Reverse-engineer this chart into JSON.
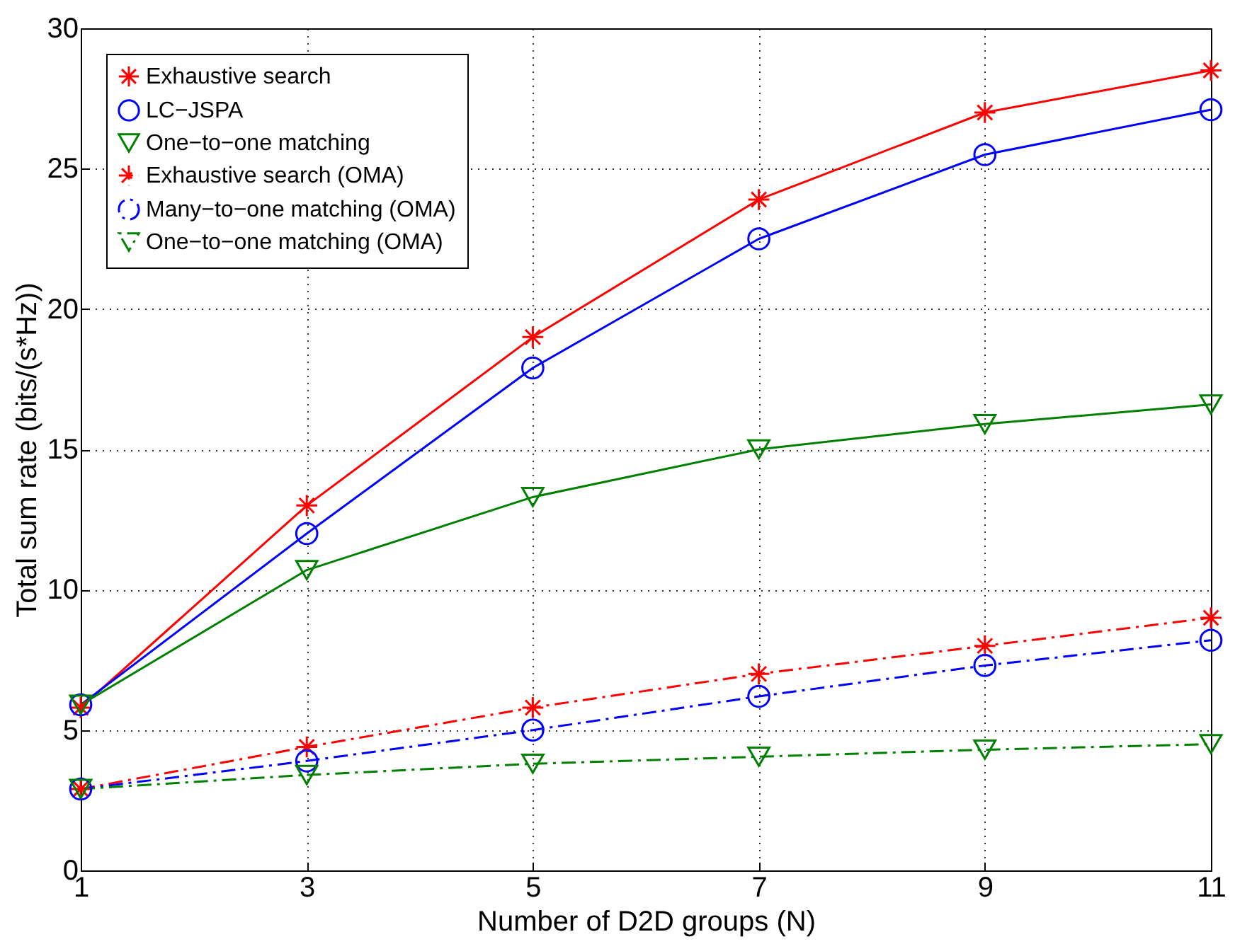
{
  "chart_data": {
    "type": "line",
    "xlabel": "Number of D2D groups (N)",
    "ylabel": "Total sum rate (bits/(s*Hz))",
    "x": [
      1,
      3,
      5,
      7,
      9,
      11
    ],
    "xlim": [
      1,
      11
    ],
    "xticks": [
      1,
      3,
      5,
      7,
      9,
      11
    ],
    "ylim": [
      0,
      30
    ],
    "yticks": [
      0,
      5,
      10,
      15,
      20,
      25,
      30
    ],
    "grid": true,
    "legend": "top left",
    "series": [
      {
        "name": "Exhaustive search",
        "color": "#ff0000",
        "marker": "cross",
        "line_style": "solid",
        "values": [
          5.8,
          13,
          19,
          23.9,
          27,
          28.5
        ]
      },
      {
        "name": "LC−JSPA",
        "color": "#0000ff",
        "marker": "circle",
        "line_style": "solid",
        "values": [
          5.9,
          12,
          17.9,
          22.5,
          25.5,
          27.1
        ]
      },
      {
        "name": "One−to−one matching",
        "color": "#008000",
        "marker": "triangle",
        "line_style": "solid",
        "values": [
          5.9,
          10.7,
          13.3,
          15,
          15.9,
          16.6
        ]
      },
      {
        "name": "Exhaustive search (OMA)",
        "color": "#ff0000",
        "marker": "cross",
        "line_style": "dashed",
        "values": [
          2.9,
          4.4,
          5.8,
          7,
          8,
          9
        ]
      },
      {
        "name": "Many−to−one matching (OMA)",
        "color": "#0000ff",
        "marker": "circle",
        "line_style": "dashed",
        "values": [
          2.9,
          3.9,
          5,
          6.2,
          7.3,
          8.2
        ]
      },
      {
        "name": "One−to−one matching (OMA)",
        "color": "#008000",
        "marker": "triangle",
        "line_style": "dashed",
        "values": [
          2.9,
          3.4,
          3.8,
          4.05,
          4.3,
          4.5
        ]
      }
    ]
  }
}
